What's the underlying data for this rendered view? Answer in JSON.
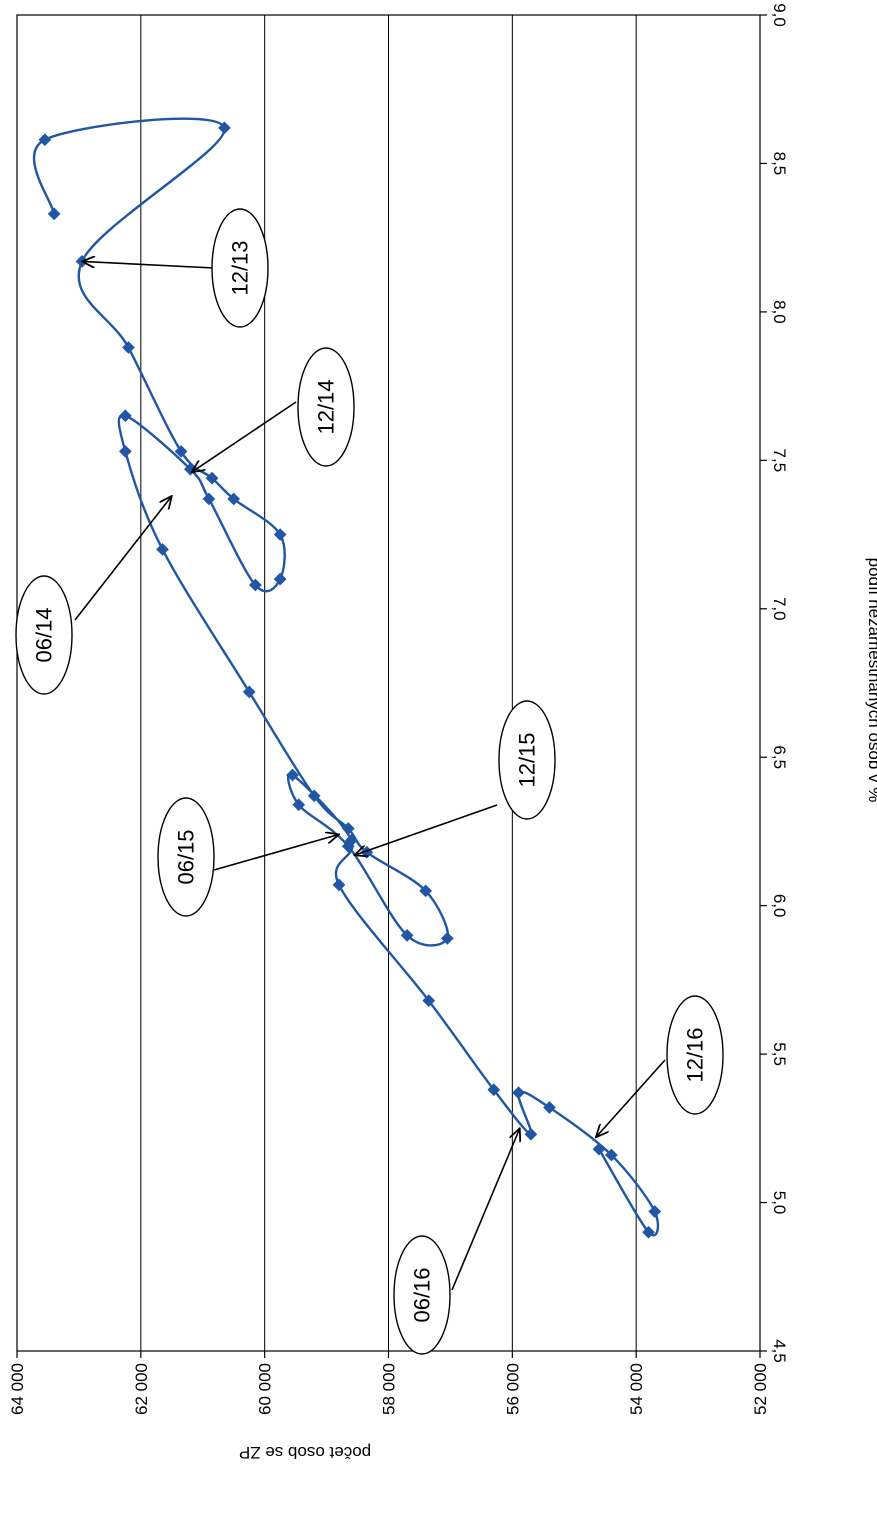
{
  "chart_data": {
    "type": "scatter",
    "title": "",
    "xlabel": "podíl nezaměstnaných osob v %",
    "ylabel": "počet osob se ZP",
    "xlim": [
      4.5,
      9.0
    ],
    "ylim": [
      52000,
      64000
    ],
    "x_ticks": [
      "4,5",
      "5,0",
      "5,5",
      "6,0",
      "6,5",
      "7,0",
      "7,5",
      "8,0",
      "8,5",
      "9,0"
    ],
    "y_ticks": [
      "52 000",
      "54 000",
      "56 000",
      "58 000",
      "60 000",
      "62 000",
      "64 000"
    ],
    "grid": "horizontal",
    "line_color": "#2156a5",
    "series": [
      {
        "points": [
          {
            "x": 8.33,
            "y": 63400
          },
          {
            "x": 8.58,
            "y": 63550
          },
          {
            "x": 8.62,
            "y": 60650
          },
          {
            "x": 8.17,
            "y": 62950
          },
          {
            "x": 7.88,
            "y": 62200
          },
          {
            "x": 7.53,
            "y": 61350
          },
          {
            "x": 7.44,
            "y": 60850
          },
          {
            "x": 7.37,
            "y": 60500
          },
          {
            "x": 7.25,
            "y": 59750
          },
          {
            "x": 7.1,
            "y": 59750
          },
          {
            "x": 7.08,
            "y": 60150
          },
          {
            "x": 7.37,
            "y": 60900
          },
          {
            "x": 7.47,
            "y": 61200
          },
          {
            "x": 7.65,
            "y": 62250
          },
          {
            "x": 7.53,
            "y": 62250
          },
          {
            "x": 7.2,
            "y": 61650
          },
          {
            "x": 6.72,
            "y": 60250
          },
          {
            "x": 6.37,
            "y": 59200
          },
          {
            "x": 6.26,
            "y": 58650
          },
          {
            "x": 6.18,
            "y": 58350
          },
          {
            "x": 6.05,
            "y": 57400
          },
          {
            "x": 5.89,
            "y": 57050
          },
          {
            "x": 5.9,
            "y": 57700
          },
          {
            "x": 6.2,
            "y": 58650
          },
          {
            "x": 6.34,
            "y": 59450
          },
          {
            "x": 6.44,
            "y": 59550
          },
          {
            "x": 6.22,
            "y": 58600
          },
          {
            "x": 6.07,
            "y": 58800
          },
          {
            "x": 5.68,
            "y": 57350
          },
          {
            "x": 5.38,
            "y": 56300
          },
          {
            "x": 5.23,
            "y": 55700
          },
          {
            "x": 5.37,
            "y": 55900
          },
          {
            "x": 5.32,
            "y": 55400
          },
          {
            "x": 5.16,
            "y": 54400
          },
          {
            "x": 4.97,
            "y": 53700
          },
          {
            "x": 4.9,
            "y": 53800
          },
          {
            "x": 5.18,
            "y": 54600
          }
        ]
      }
    ],
    "annotations": [
      {
        "label": "12/13",
        "x": 8.17,
        "y": 62950
      },
      {
        "label": "12/14",
        "x": 7.46,
        "y": 61180
      },
      {
        "label": "06/14",
        "x": 7.38,
        "y": 61500
      },
      {
        "label": "12/15",
        "x": 6.17,
        "y": 58550
      },
      {
        "label": "06/15",
        "x": 6.24,
        "y": 58800
      },
      {
        "label": "12/16",
        "x": 5.22,
        "y": 54650
      },
      {
        "label": "06/16",
        "x": 5.25,
        "y": 55880
      }
    ]
  }
}
